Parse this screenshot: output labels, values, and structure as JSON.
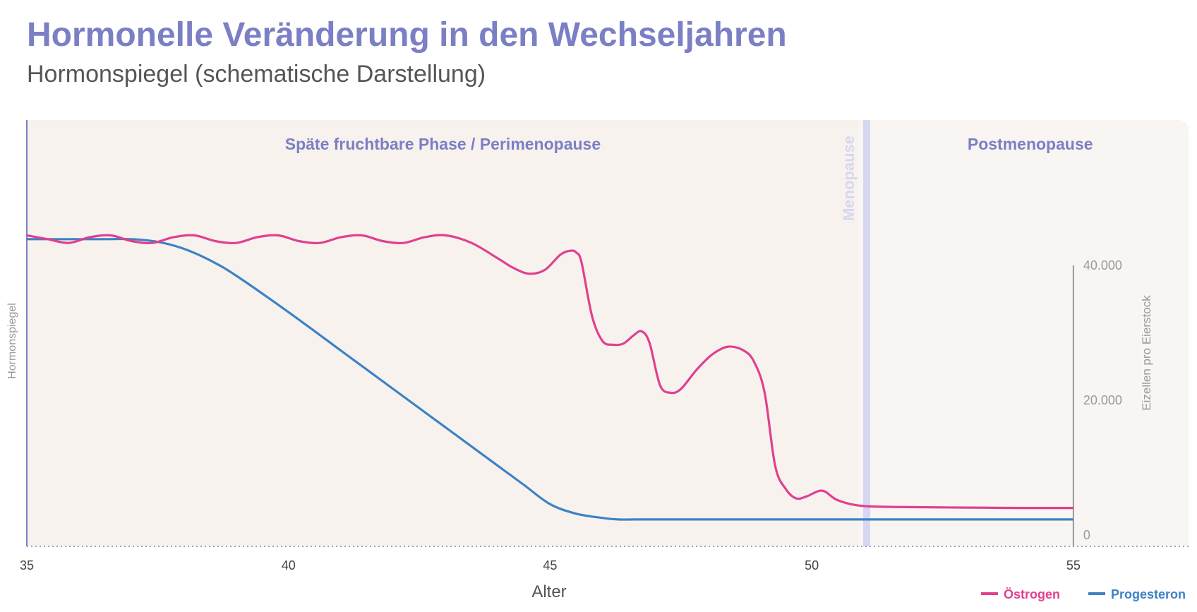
{
  "title": "Hormonelle Veränderung in den Wechseljahren",
  "subtitle": "Hormonspiegel (schematische Darstellung)",
  "colors": {
    "title": "#7b7fc4",
    "estrogen": "#e0408f",
    "progesterone": "#3d82c4",
    "phase_bg": "#f7f2ee",
    "post_bg": "#f8f5f2",
    "menopause_band": "#d6d7f0",
    "axis": "#7b7fc4"
  },
  "chart_data": {
    "type": "line",
    "xlabel": "Alter",
    "ylabel": "Hormonspiegel",
    "y2label": "Eizellen pro Eierstock",
    "xlim": [
      35,
      57.2
    ],
    "ylim": [
      0,
      100
    ],
    "y2lim": [
      0,
      40000
    ],
    "x_ticks": [
      35,
      40,
      45,
      50,
      55
    ],
    "y2_ticks": [
      {
        "value": 0,
        "label": "0"
      },
      {
        "value": 20000,
        "label": "20.000"
      },
      {
        "value": 40000,
        "label": "40.000"
      }
    ],
    "regions": [
      {
        "label": "Späte fruchtbare Phase / Perimenopause",
        "from": 35,
        "to": 50.9
      },
      {
        "label": "Menopause",
        "at": 51.05
      },
      {
        "label": "Postmenopause",
        "from": 51.15,
        "to": 57.2
      }
    ],
    "series": [
      {
        "name": "Östrogen",
        "x": [
          35,
          35.4,
          35.8,
          36.2,
          36.6,
          37.0,
          37.4,
          37.8,
          38.2,
          38.6,
          39.0,
          39.4,
          39.8,
          40.2,
          40.6,
          41.0,
          41.4,
          41.8,
          42.2,
          42.6,
          43.0,
          43.5,
          44.0,
          44.3,
          44.6,
          44.9,
          45.2,
          45.4,
          45.5,
          45.6,
          45.8,
          46.0,
          46.2,
          46.4,
          46.6,
          46.75,
          46.9,
          47.1,
          47.3,
          47.5,
          47.8,
          48.1,
          48.4,
          48.7,
          48.9,
          49.1,
          49.3,
          49.5,
          49.7,
          49.9,
          50.2,
          50.5,
          51.0,
          52.0,
          53.0,
          54.0,
          55.0
        ],
        "y": [
          81,
          80,
          79,
          80.5,
          81,
          79.5,
          79,
          80.5,
          81,
          79.5,
          79,
          80.5,
          81,
          79.5,
          79,
          80.5,
          81,
          79.5,
          79,
          80.5,
          81,
          79,
          75,
          72.5,
          71,
          72,
          76,
          77,
          76.5,
          74,
          60,
          53.5,
          52.5,
          52.8,
          55,
          56,
          53,
          42,
          40,
          41,
          46,
          50,
          52,
          51,
          48,
          40,
          21,
          15,
          12.5,
          13,
          14.5,
          12,
          10.5,
          10.2,
          10.1,
          10.0,
          10.0
        ]
      },
      {
        "name": "Progesteron",
        "x": [
          35,
          35.5,
          36.0,
          36.5,
          37.0,
          37.5,
          38.0,
          38.5,
          39.0,
          40.0,
          41.0,
          42.0,
          43.0,
          44.0,
          44.5,
          45.0,
          45.5,
          46.0,
          46.3,
          46.6,
          47,
          48,
          49,
          50,
          51,
          52,
          53,
          54,
          55
        ],
        "y": [
          80,
          80,
          80,
          80,
          80,
          79.3,
          77.5,
          74.5,
          70.5,
          61,
          51,
          41,
          31,
          21,
          16,
          11,
          8.5,
          7.4,
          7,
          7,
          7,
          7,
          7,
          7,
          7,
          7,
          7,
          7,
          7
        ]
      }
    ]
  }
}
